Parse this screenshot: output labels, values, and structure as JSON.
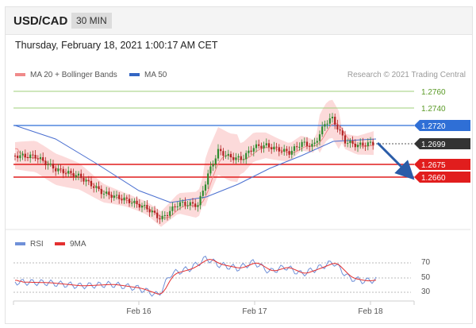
{
  "header": {
    "symbol": "USD/CAD",
    "timeframe": "30 MIN"
  },
  "datetime": "Thursday, February 18, 2021 1:00:17 AM CET",
  "legend": {
    "bollinger": "MA 20 + Bollinger Bands",
    "ma50": "MA 50",
    "rsi": "RSI",
    "ma9": "9MA"
  },
  "research": "Research © 2021 Trading Central",
  "levels": [
    {
      "value": "1.2760",
      "kind": "resistance-green"
    },
    {
      "value": "1.2740",
      "kind": "resistance-green"
    },
    {
      "value": "1.2720",
      "kind": "resistance-blue"
    },
    {
      "value": "1.2699",
      "kind": "last-price"
    },
    {
      "value": "1.2675",
      "kind": "support-red"
    },
    {
      "value": "1.2660",
      "kind": "support-red"
    }
  ],
  "rsi_axis": [
    "70",
    "50",
    "30"
  ],
  "x_axis": [
    "Feb 16",
    "Feb 17",
    "Feb 18"
  ],
  "colors": {
    "green": "#7ab648",
    "blue": "#2f6fd6",
    "red": "#e11d1d",
    "dark": "#333333",
    "candle_up": "#2e8b2e",
    "candle_down": "#b22222",
    "band_fill": "#fbd3d3",
    "rsi": "#6f90d8",
    "ma9": "#e43030"
  },
  "annotation": {
    "forecast_arrow": "down"
  }
}
